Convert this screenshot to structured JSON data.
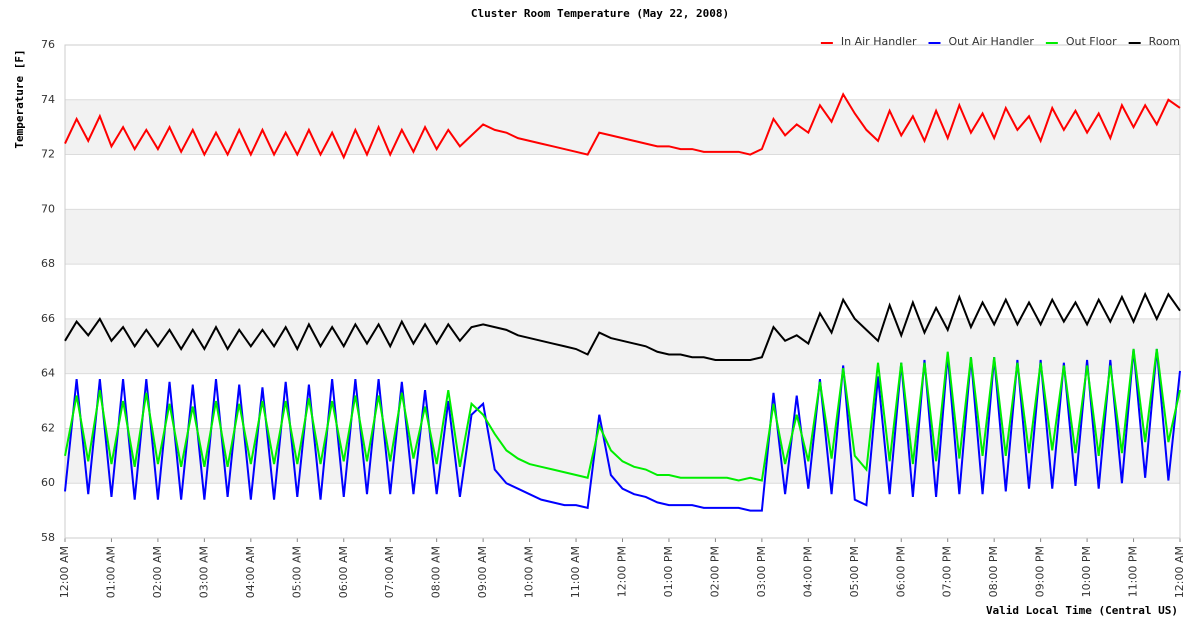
{
  "chart_data": {
    "type": "line",
    "title": "Cluster Room Temperature (May 22, 2008)",
    "ylabel": "Temperature [F]",
    "xlabel": "Valid Local Time (Central US)",
    "ylim": [
      58,
      76
    ],
    "yticks": [
      58,
      60,
      62,
      64,
      66,
      68,
      70,
      72,
      74,
      76
    ],
    "xlim": [
      0,
      24
    ],
    "xticks": [
      {
        "value": 0,
        "label": "12:00 AM"
      },
      {
        "value": 1,
        "label": "01:00 AM"
      },
      {
        "value": 2,
        "label": "02:00 AM"
      },
      {
        "value": 3,
        "label": "03:00 AM"
      },
      {
        "value": 4,
        "label": "04:00 AM"
      },
      {
        "value": 5,
        "label": "05:00 AM"
      },
      {
        "value": 6,
        "label": "06:00 AM"
      },
      {
        "value": 7,
        "label": "07:00 AM"
      },
      {
        "value": 8,
        "label": "08:00 AM"
      },
      {
        "value": 9,
        "label": "09:00 AM"
      },
      {
        "value": 10,
        "label": "10:00 AM"
      },
      {
        "value": 11,
        "label": "11:00 AM"
      },
      {
        "value": 12,
        "label": "12:00 PM"
      },
      {
        "value": 13,
        "label": "01:00 PM"
      },
      {
        "value": 14,
        "label": "02:00 PM"
      },
      {
        "value": 15,
        "label": "03:00 PM"
      },
      {
        "value": 16,
        "label": "04:00 PM"
      },
      {
        "value": 17,
        "label": "05:00 PM"
      },
      {
        "value": 18,
        "label": "06:00 PM"
      },
      {
        "value": 19,
        "label": "07:00 PM"
      },
      {
        "value": 20,
        "label": "08:00 PM"
      },
      {
        "value": 21,
        "label": "09:00 PM"
      },
      {
        "value": 22,
        "label": "10:00 PM"
      },
      {
        "value": 23,
        "label": "11:00 PM"
      },
      {
        "value": 24,
        "label": "12:00 AM"
      }
    ],
    "grid": true,
    "legend": "top-right",
    "x": [
      0,
      0.25,
      0.5,
      0.75,
      1,
      1.25,
      1.5,
      1.75,
      2,
      2.25,
      2.5,
      2.75,
      3,
      3.25,
      3.5,
      3.75,
      4,
      4.25,
      4.5,
      4.75,
      5,
      5.25,
      5.5,
      5.75,
      6,
      6.25,
      6.5,
      6.75,
      7,
      7.25,
      7.5,
      7.75,
      8,
      8.25,
      8.5,
      8.75,
      9,
      9.25,
      9.5,
      9.75,
      10,
      10.25,
      10.5,
      10.75,
      11,
      11.25,
      11.5,
      11.75,
      12,
      12.25,
      12.5,
      12.75,
      13,
      13.25,
      13.5,
      13.75,
      14,
      14.25,
      14.5,
      14.75,
      15,
      15.25,
      15.5,
      15.75,
      16,
      16.25,
      16.5,
      16.75,
      17,
      17.25,
      17.5,
      17.75,
      18,
      18.25,
      18.5,
      18.75,
      19,
      19.25,
      19.5,
      19.75,
      20,
      20.25,
      20.5,
      20.75,
      21,
      21.25,
      21.5,
      21.75,
      22,
      22.25,
      22.5,
      22.75,
      23,
      23.25,
      23.5,
      23.75,
      24
    ],
    "series": [
      {
        "name": "In Air Handler",
        "color": "#ff0000",
        "values": [
          72.4,
          73.3,
          72.5,
          73.4,
          72.3,
          73.0,
          72.2,
          72.9,
          72.2,
          73.0,
          72.1,
          72.9,
          72.0,
          72.8,
          72.0,
          72.9,
          72.0,
          72.9,
          72.0,
          72.8,
          72.0,
          72.9,
          72.0,
          72.8,
          71.9,
          72.9,
          72.0,
          73.0,
          72.0,
          72.9,
          72.1,
          73.0,
          72.2,
          72.9,
          72.3,
          72.7,
          73.1,
          72.9,
          72.8,
          72.6,
          72.5,
          72.4,
          72.3,
          72.2,
          72.1,
          72.0,
          72.8,
          72.7,
          72.6,
          72.5,
          72.4,
          72.3,
          72.3,
          72.2,
          72.2,
          72.1,
          72.1,
          72.1,
          72.1,
          72.0,
          72.2,
          73.3,
          72.7,
          73.1,
          72.8,
          73.8,
          73.2,
          74.2,
          73.5,
          72.9,
          72.5,
          73.6,
          72.7,
          73.4,
          72.5,
          73.6,
          72.6,
          73.8,
          72.8,
          73.5,
          72.6,
          73.7,
          72.9,
          73.4,
          72.5,
          73.7,
          72.9,
          73.6,
          72.8,
          73.5,
          72.6,
          73.8,
          73.0,
          73.8,
          73.1,
          74.0,
          73.7
        ]
      },
      {
        "name": "Out Air Handler",
        "color": "#0000ff",
        "values": [
          59.7,
          63.8,
          59.6,
          63.8,
          59.5,
          63.8,
          59.4,
          63.8,
          59.4,
          63.7,
          59.4,
          63.6,
          59.4,
          63.8,
          59.5,
          63.6,
          59.4,
          63.5,
          59.4,
          63.7,
          59.5,
          63.6,
          59.4,
          63.8,
          59.5,
          63.8,
          59.6,
          63.8,
          59.6,
          63.7,
          59.6,
          63.4,
          59.6,
          63.0,
          59.5,
          62.5,
          62.9,
          60.5,
          60.0,
          59.8,
          59.6,
          59.4,
          59.3,
          59.2,
          59.2,
          59.1,
          62.5,
          60.3,
          59.8,
          59.6,
          59.5,
          59.3,
          59.2,
          59.2,
          59.2,
          59.1,
          59.1,
          59.1,
          59.1,
          59.0,
          59.0,
          63.3,
          59.6,
          63.2,
          59.8,
          63.8,
          59.6,
          64.3,
          59.4,
          59.2,
          63.9,
          59.6,
          64.4,
          59.5,
          64.5,
          59.5,
          64.7,
          59.6,
          64.6,
          59.6,
          64.6,
          59.7,
          64.5,
          59.8,
          64.5,
          59.8,
          64.4,
          59.9,
          64.5,
          59.8,
          64.5,
          60.0,
          64.9,
          60.2,
          64.9,
          60.1,
          64.1
        ]
      },
      {
        "name": "Out Floor",
        "color": "#00ee00",
        "values": [
          61.0,
          63.2,
          60.8,
          63.4,
          60.7,
          63.0,
          60.6,
          63.3,
          60.7,
          62.9,
          60.6,
          62.8,
          60.6,
          63.0,
          60.6,
          62.9,
          60.7,
          63.0,
          60.7,
          63.0,
          60.7,
          63.1,
          60.7,
          63.0,
          60.8,
          63.2,
          60.8,
          63.2,
          60.8,
          63.3,
          60.9,
          62.8,
          60.7,
          63.4,
          60.6,
          62.9,
          62.5,
          61.8,
          61.2,
          60.9,
          60.7,
          60.6,
          60.5,
          60.4,
          60.3,
          60.2,
          62.1,
          61.2,
          60.8,
          60.6,
          60.5,
          60.3,
          60.3,
          60.2,
          60.2,
          60.2,
          60.2,
          60.2,
          60.1,
          60.2,
          60.1,
          62.9,
          60.7,
          62.5,
          60.8,
          63.7,
          60.9,
          64.2,
          61.0,
          60.5,
          64.4,
          60.8,
          64.4,
          60.7,
          64.4,
          60.8,
          64.8,
          60.9,
          64.6,
          61.0,
          64.6,
          61.0,
          64.4,
          61.1,
          64.4,
          61.2,
          64.3,
          61.1,
          64.3,
          61.0,
          64.3,
          61.1,
          64.9,
          61.5,
          64.9,
          61.5,
          63.4
        ]
      },
      {
        "name": "Room",
        "color": "#000000",
        "values": [
          65.2,
          65.9,
          65.4,
          66.0,
          65.2,
          65.7,
          65.0,
          65.6,
          65.0,
          65.6,
          64.9,
          65.6,
          64.9,
          65.7,
          64.9,
          65.6,
          65.0,
          65.6,
          65.0,
          65.7,
          64.9,
          65.8,
          65.0,
          65.7,
          65.0,
          65.8,
          65.1,
          65.8,
          65.0,
          65.9,
          65.1,
          65.8,
          65.1,
          65.8,
          65.2,
          65.7,
          65.8,
          65.7,
          65.6,
          65.4,
          65.3,
          65.2,
          65.1,
          65.0,
          64.9,
          64.7,
          65.5,
          65.3,
          65.2,
          65.1,
          65.0,
          64.8,
          64.7,
          64.7,
          64.6,
          64.6,
          64.5,
          64.5,
          64.5,
          64.5,
          64.6,
          65.7,
          65.2,
          65.4,
          65.1,
          66.2,
          65.5,
          66.7,
          66.0,
          65.6,
          65.2,
          66.5,
          65.4,
          66.6,
          65.5,
          66.4,
          65.6,
          66.8,
          65.7,
          66.6,
          65.8,
          66.7,
          65.8,
          66.6,
          65.8,
          66.7,
          65.9,
          66.6,
          65.8,
          66.7,
          65.9,
          66.8,
          65.9,
          66.9,
          66.0,
          66.9,
          66.3
        ]
      }
    ]
  }
}
